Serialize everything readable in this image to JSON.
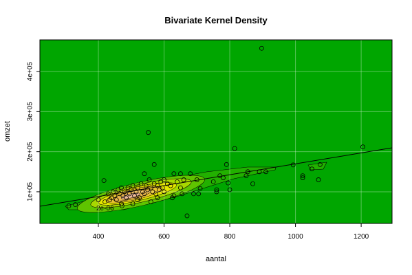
{
  "chart_data": {
    "type": "scatter",
    "title": "Bivariate Kernel Density",
    "x_label": "aantal",
    "y_label": "omzet",
    "xlim": [
      222,
      1294
    ],
    "ylim": [
      21000,
      479000
    ],
    "xticks": [
      400,
      600,
      800,
      1000,
      1200
    ],
    "yticks": [
      {
        "value": 100000,
        "label": "1e+05"
      },
      {
        "value": 200000,
        "label": "2e+05"
      },
      {
        "value": 300000,
        "label": "3e+05"
      },
      {
        "value": 400000,
        "label": "4e+05"
      }
    ],
    "grid": true,
    "background": "#00a600",
    "point_color": "#000000",
    "line_color": "#000000",
    "contour_label": "2e-06",
    "x": [
      897,
      552,
      815,
      1205,
      670,
      993,
      1050,
      1075,
      1070,
      1022,
      1022,
      910,
      890,
      870,
      855,
      850,
      800,
      795,
      790,
      780,
      770,
      760,
      760,
      750,
      705,
      690,
      710,
      700,
      680,
      650,
      630,
      570,
      417,
      310,
      330,
      472,
      505,
      560,
      625,
      655,
      430,
      440,
      445,
      450,
      455,
      460,
      465,
      470,
      475,
      480,
      485,
      490,
      495,
      500,
      505,
      510,
      515,
      520,
      525,
      530,
      535,
      540,
      545,
      550,
      555,
      560,
      565,
      570,
      575,
      580,
      585,
      590,
      595,
      600,
      610,
      620,
      630,
      640,
      650,
      660,
      420,
      435,
      470,
      520,
      580,
      400,
      600,
      540
    ],
    "values": [
      458000,
      248000,
      208000,
      212000,
      40000,
      167000,
      157000,
      168000,
      130000,
      140000,
      135000,
      150000,
      150000,
      120000,
      150000,
      140000,
      105000,
      122000,
      168000,
      135000,
      140000,
      100000,
      105000,
      125000,
      95000,
      95000,
      108000,
      130000,
      145000,
      145000,
      145000,
      168000,
      128000,
      65000,
      68000,
      65000,
      70000,
      75000,
      85000,
      95000,
      95000,
      85000,
      100000,
      90000,
      80000,
      105000,
      95000,
      110000,
      90000,
      100000,
      85000,
      110000,
      95000,
      105000,
      115000,
      90000,
      100000,
      110000,
      85000,
      120000,
      100000,
      95000,
      115000,
      105000,
      130000,
      110000,
      100000,
      120000,
      95000,
      115000,
      105000,
      125000,
      110000,
      100000,
      120000,
      115000,
      90000,
      125000,
      110000,
      130000,
      75000,
      80000,
      70000,
      80000,
      85000,
      80000,
      130000,
      145000
    ],
    "trend_line": {
      "x": [
        222,
        1294
      ],
      "y": [
        63900,
        209700
      ]
    }
  }
}
